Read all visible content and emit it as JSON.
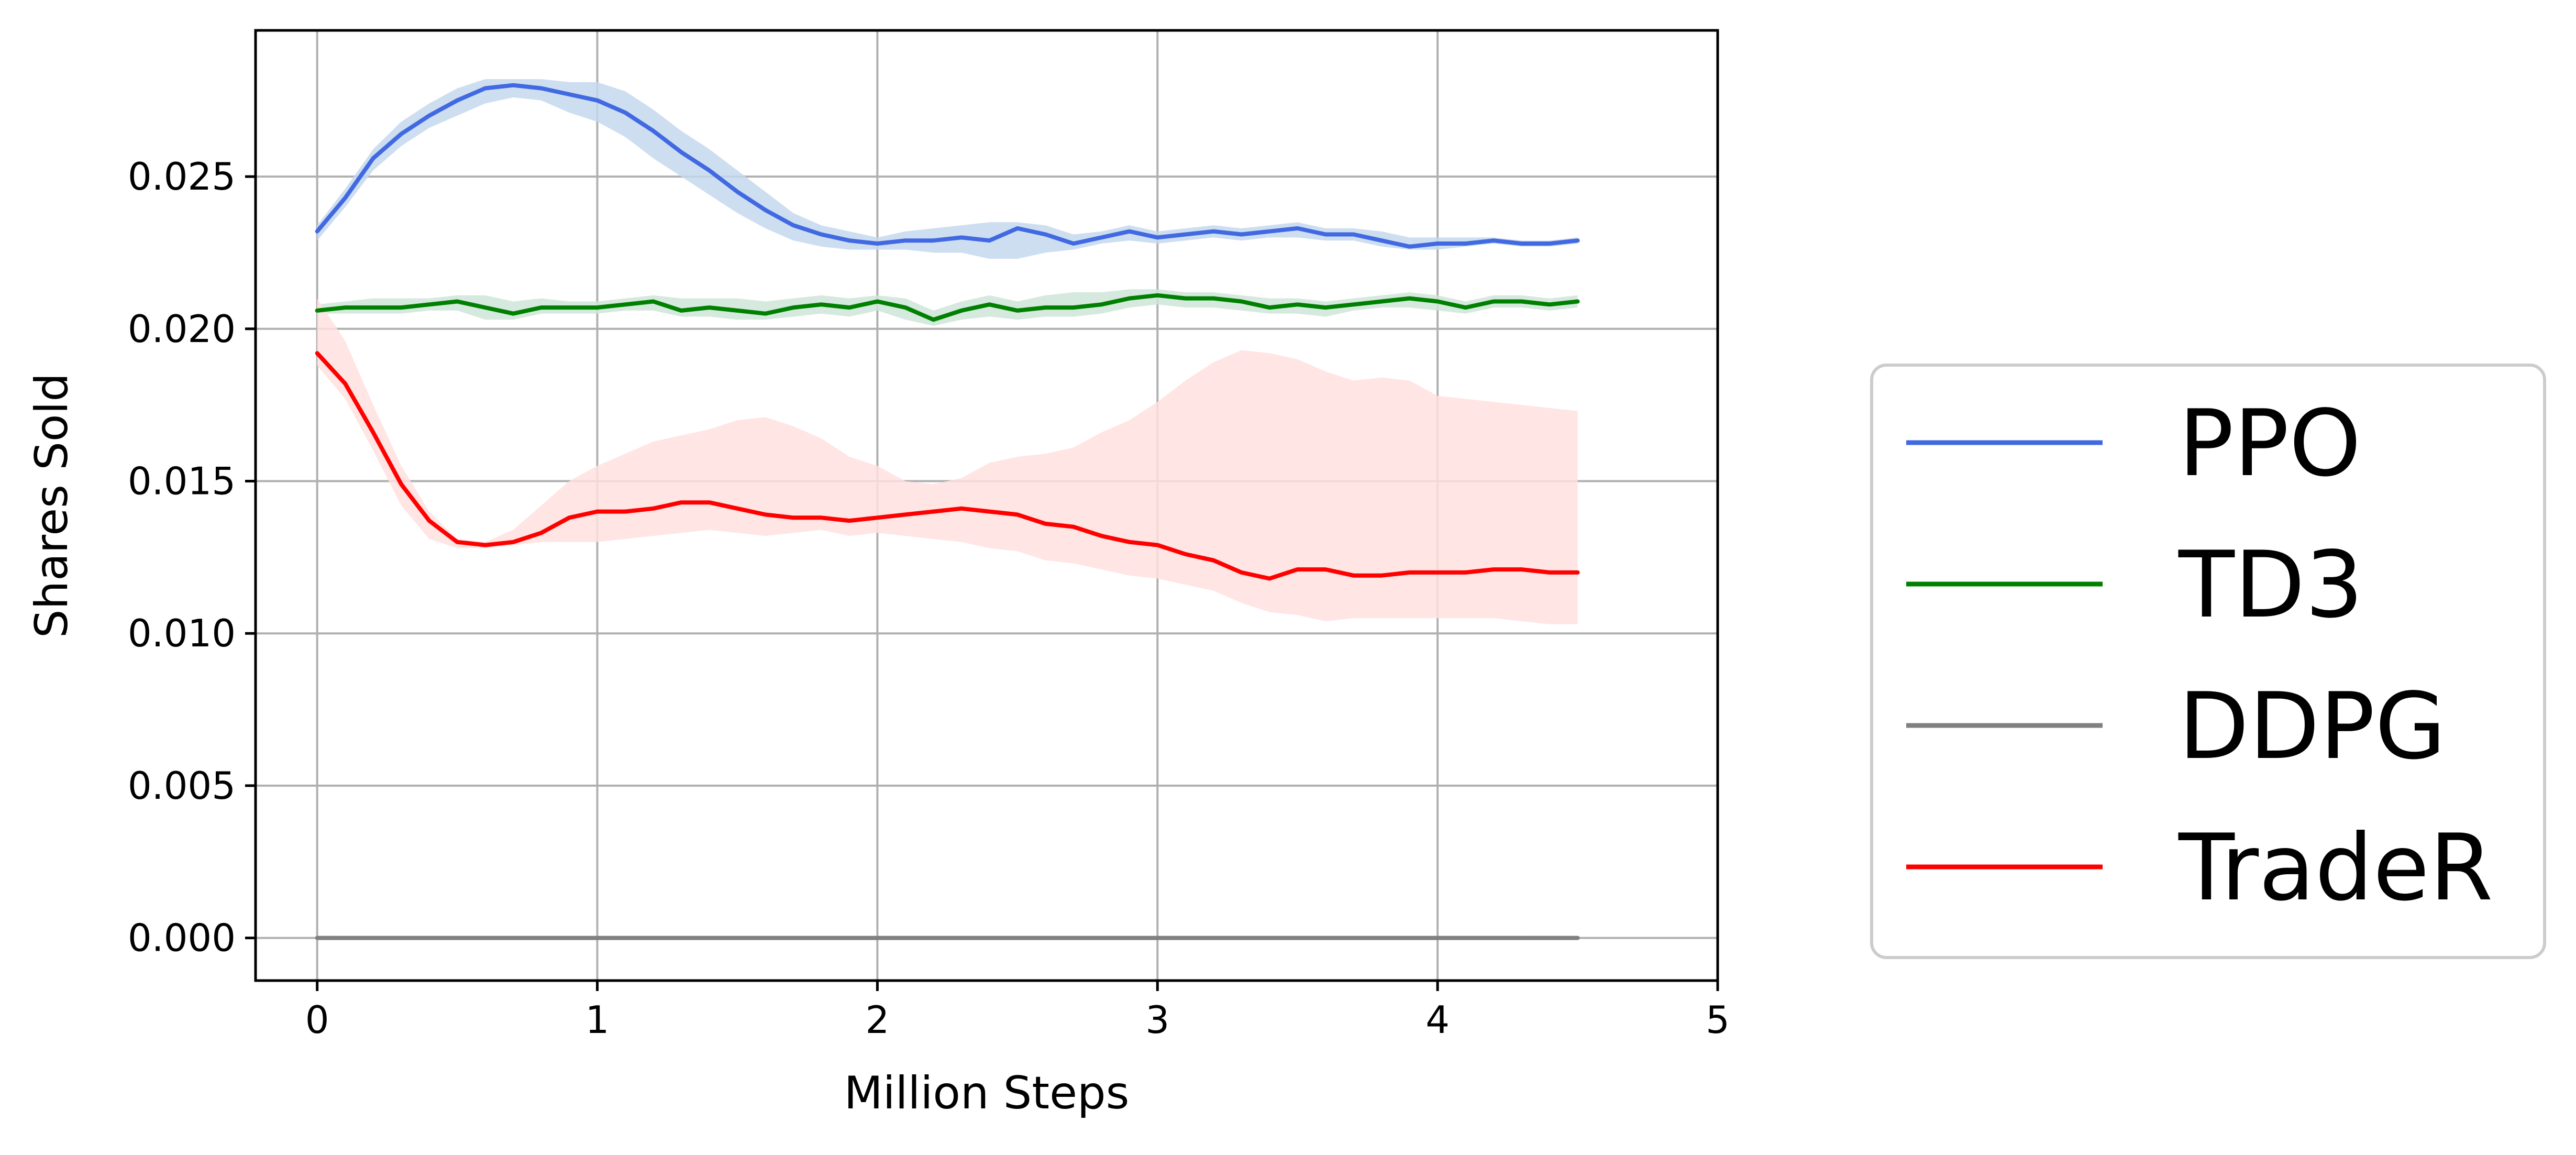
{
  "chart_data": {
    "type": "line",
    "title": "",
    "xlabel": "Million Steps",
    "ylabel": "Shares Sold",
    "xlim": [
      -0.22,
      5.0
    ],
    "ylim": [
      -0.0014,
      0.0298
    ],
    "xticks": [
      0,
      1,
      2,
      3,
      4,
      5
    ],
    "xtick_labels": [
      "0",
      "1",
      "2",
      "3",
      "4",
      "5"
    ],
    "yticks": [
      0.0,
      0.005,
      0.01,
      0.015,
      0.02,
      0.025
    ],
    "ytick_labels": [
      "0.000",
      "0.005",
      "0.010",
      "0.015",
      "0.020",
      "0.025"
    ],
    "grid": true,
    "legend_position": "right-outside",
    "series": [
      {
        "name": "PPO",
        "color": "#4169e1",
        "band_color": "#c6d8ee",
        "x": [
          0,
          0.1,
          0.2,
          0.3,
          0.4,
          0.5,
          0.6,
          0.7,
          0.8,
          0.9,
          1.0,
          1.1,
          1.2,
          1.3,
          1.4,
          1.5,
          1.6,
          1.7,
          1.8,
          1.9,
          2.0,
          2.1,
          2.2,
          2.3,
          2.4,
          2.5,
          2.6,
          2.7,
          2.8,
          2.9,
          3.0,
          3.1,
          3.2,
          3.3,
          3.4,
          3.5,
          3.6,
          3.7,
          3.8,
          3.9,
          4.0,
          4.1,
          4.2,
          4.3,
          4.4,
          4.5
        ],
        "y": [
          0.0232,
          0.0243,
          0.0256,
          0.0264,
          0.027,
          0.0275,
          0.0279,
          0.028,
          0.0279,
          0.0277,
          0.0275,
          0.0271,
          0.0265,
          0.0258,
          0.0252,
          0.0245,
          0.0239,
          0.0234,
          0.0231,
          0.0229,
          0.0228,
          0.0229,
          0.0229,
          0.023,
          0.0229,
          0.0233,
          0.0231,
          0.0228,
          0.023,
          0.0232,
          0.023,
          0.0231,
          0.0232,
          0.0231,
          0.0232,
          0.0233,
          0.0231,
          0.0231,
          0.0229,
          0.0227,
          0.0228,
          0.0228,
          0.0229,
          0.0228,
          0.0228,
          0.0229
        ],
        "lower": [
          0.0229,
          0.024,
          0.0252,
          0.026,
          0.0266,
          0.027,
          0.0274,
          0.0276,
          0.0275,
          0.0271,
          0.0268,
          0.0263,
          0.0256,
          0.025,
          0.0244,
          0.0238,
          0.0233,
          0.0229,
          0.0227,
          0.0226,
          0.0226,
          0.0226,
          0.0225,
          0.0225,
          0.0223,
          0.0223,
          0.0225,
          0.0226,
          0.0228,
          0.0229,
          0.0228,
          0.0229,
          0.023,
          0.0229,
          0.023,
          0.023,
          0.0229,
          0.0229,
          0.0227,
          0.0226,
          0.0226,
          0.0227,
          0.0228,
          0.0227,
          0.0227,
          0.0228
        ],
        "upper": [
          0.0234,
          0.0246,
          0.0259,
          0.0268,
          0.0274,
          0.0279,
          0.0282,
          0.0282,
          0.0282,
          0.0281,
          0.0281,
          0.0278,
          0.0272,
          0.0265,
          0.0259,
          0.0252,
          0.0245,
          0.0238,
          0.0234,
          0.0232,
          0.023,
          0.0232,
          0.0233,
          0.0234,
          0.0235,
          0.0235,
          0.0234,
          0.0231,
          0.0232,
          0.0234,
          0.0232,
          0.0233,
          0.0234,
          0.0233,
          0.0234,
          0.0235,
          0.0233,
          0.0233,
          0.0232,
          0.023,
          0.023,
          0.023,
          0.023,
          0.0229,
          0.0229,
          0.023
        ]
      },
      {
        "name": "TD3",
        "color": "#008000",
        "band_color": "#cfe5d8",
        "x": [
          0,
          0.1,
          0.2,
          0.3,
          0.4,
          0.5,
          0.6,
          0.7,
          0.8,
          0.9,
          1.0,
          1.1,
          1.2,
          1.3,
          1.4,
          1.5,
          1.6,
          1.7,
          1.8,
          1.9,
          2.0,
          2.1,
          2.2,
          2.3,
          2.4,
          2.5,
          2.6,
          2.7,
          2.8,
          2.9,
          3.0,
          3.1,
          3.2,
          3.3,
          3.4,
          3.5,
          3.6,
          3.7,
          3.8,
          3.9,
          4.0,
          4.1,
          4.2,
          4.3,
          4.4,
          4.5
        ],
        "y": [
          0.0206,
          0.0207,
          0.0207,
          0.0207,
          0.0208,
          0.0209,
          0.0207,
          0.0205,
          0.0207,
          0.0207,
          0.0207,
          0.0208,
          0.0209,
          0.0206,
          0.0207,
          0.0206,
          0.0205,
          0.0207,
          0.0208,
          0.0207,
          0.0209,
          0.0207,
          0.0203,
          0.0206,
          0.0208,
          0.0206,
          0.0207,
          0.0207,
          0.0208,
          0.021,
          0.0211,
          0.021,
          0.021,
          0.0209,
          0.0207,
          0.0208,
          0.0207,
          0.0208,
          0.0209,
          0.021,
          0.0209,
          0.0207,
          0.0209,
          0.0209,
          0.0208,
          0.0209
        ],
        "lower": [
          0.0205,
          0.0205,
          0.0205,
          0.0205,
          0.0206,
          0.0206,
          0.0203,
          0.0203,
          0.0205,
          0.0205,
          0.0205,
          0.0206,
          0.0206,
          0.0204,
          0.0204,
          0.0203,
          0.0203,
          0.0204,
          0.0205,
          0.0204,
          0.0206,
          0.0203,
          0.0201,
          0.0203,
          0.0204,
          0.0203,
          0.0204,
          0.0204,
          0.0205,
          0.0207,
          0.0208,
          0.0207,
          0.0207,
          0.0206,
          0.0205,
          0.0205,
          0.0204,
          0.0206,
          0.0207,
          0.0207,
          0.0206,
          0.0205,
          0.0207,
          0.0207,
          0.0206,
          0.0207
        ],
        "upper": [
          0.0208,
          0.0209,
          0.021,
          0.021,
          0.021,
          0.0211,
          0.0211,
          0.0209,
          0.021,
          0.0209,
          0.0209,
          0.021,
          0.0211,
          0.021,
          0.021,
          0.021,
          0.0209,
          0.021,
          0.0211,
          0.021,
          0.0211,
          0.021,
          0.0206,
          0.0209,
          0.0211,
          0.0209,
          0.0211,
          0.0212,
          0.0212,
          0.0213,
          0.0213,
          0.0212,
          0.0212,
          0.0211,
          0.021,
          0.021,
          0.0209,
          0.021,
          0.0211,
          0.0212,
          0.0211,
          0.0209,
          0.0211,
          0.0211,
          0.021,
          0.0211
        ]
      },
      {
        "name": "DDPG",
        "color": "#808080",
        "band_color": "#e0e0e0",
        "x": [
          0,
          4.5
        ],
        "y": [
          0.0,
          0.0
        ],
        "lower": [
          0.0,
          0.0
        ],
        "upper": [
          0.0,
          0.0
        ]
      },
      {
        "name": "TradeR",
        "color": "#ff0000",
        "band_color": "#ffe1de",
        "x": [
          0,
          0.1,
          0.2,
          0.3,
          0.4,
          0.5,
          0.6,
          0.7,
          0.8,
          0.9,
          1.0,
          1.1,
          1.2,
          1.3,
          1.4,
          1.5,
          1.6,
          1.7,
          1.8,
          1.9,
          2.0,
          2.1,
          2.2,
          2.3,
          2.4,
          2.5,
          2.6,
          2.7,
          2.8,
          2.9,
          3.0,
          3.1,
          3.2,
          3.3,
          3.4,
          3.5,
          3.6,
          3.7,
          3.8,
          3.9,
          4.0,
          4.1,
          4.2,
          4.3,
          4.4,
          4.5
        ],
        "y": [
          0.0192,
          0.0182,
          0.0166,
          0.0149,
          0.0137,
          0.013,
          0.0129,
          0.013,
          0.0133,
          0.0138,
          0.014,
          0.014,
          0.0141,
          0.0143,
          0.0143,
          0.0141,
          0.0139,
          0.0138,
          0.0138,
          0.0137,
          0.0138,
          0.0139,
          0.014,
          0.0141,
          0.014,
          0.0139,
          0.0136,
          0.0135,
          0.0132,
          0.013,
          0.0129,
          0.0126,
          0.0124,
          0.012,
          0.0118,
          0.0121,
          0.0121,
          0.0119,
          0.0119,
          0.012,
          0.012,
          0.012,
          0.0121,
          0.0121,
          0.012,
          0.012
        ],
        "lower": [
          0.0188,
          0.0177,
          0.016,
          0.0142,
          0.0131,
          0.0128,
          0.0128,
          0.0129,
          0.013,
          0.013,
          0.013,
          0.0131,
          0.0132,
          0.0133,
          0.0134,
          0.0133,
          0.0132,
          0.0133,
          0.0134,
          0.0132,
          0.0133,
          0.0132,
          0.0131,
          0.013,
          0.0128,
          0.0127,
          0.0124,
          0.0123,
          0.0121,
          0.0119,
          0.0118,
          0.0116,
          0.0114,
          0.011,
          0.0107,
          0.0106,
          0.0104,
          0.0105,
          0.0105,
          0.0105,
          0.0105,
          0.0105,
          0.0105,
          0.0104,
          0.0103,
          0.0103
        ],
        "upper": [
          0.021,
          0.0196,
          0.0175,
          0.0155,
          0.014,
          0.0131,
          0.013,
          0.0134,
          0.0142,
          0.015,
          0.0155,
          0.0159,
          0.0163,
          0.0165,
          0.0167,
          0.017,
          0.0171,
          0.0168,
          0.0164,
          0.0158,
          0.0155,
          0.015,
          0.0149,
          0.0151,
          0.0156,
          0.0158,
          0.0159,
          0.0161,
          0.0166,
          0.017,
          0.0176,
          0.0183,
          0.0189,
          0.0193,
          0.0192,
          0.019,
          0.0186,
          0.0183,
          0.0184,
          0.0183,
          0.0178,
          0.0177,
          0.0176,
          0.0175,
          0.0174,
          0.0173
        ]
      }
    ]
  }
}
